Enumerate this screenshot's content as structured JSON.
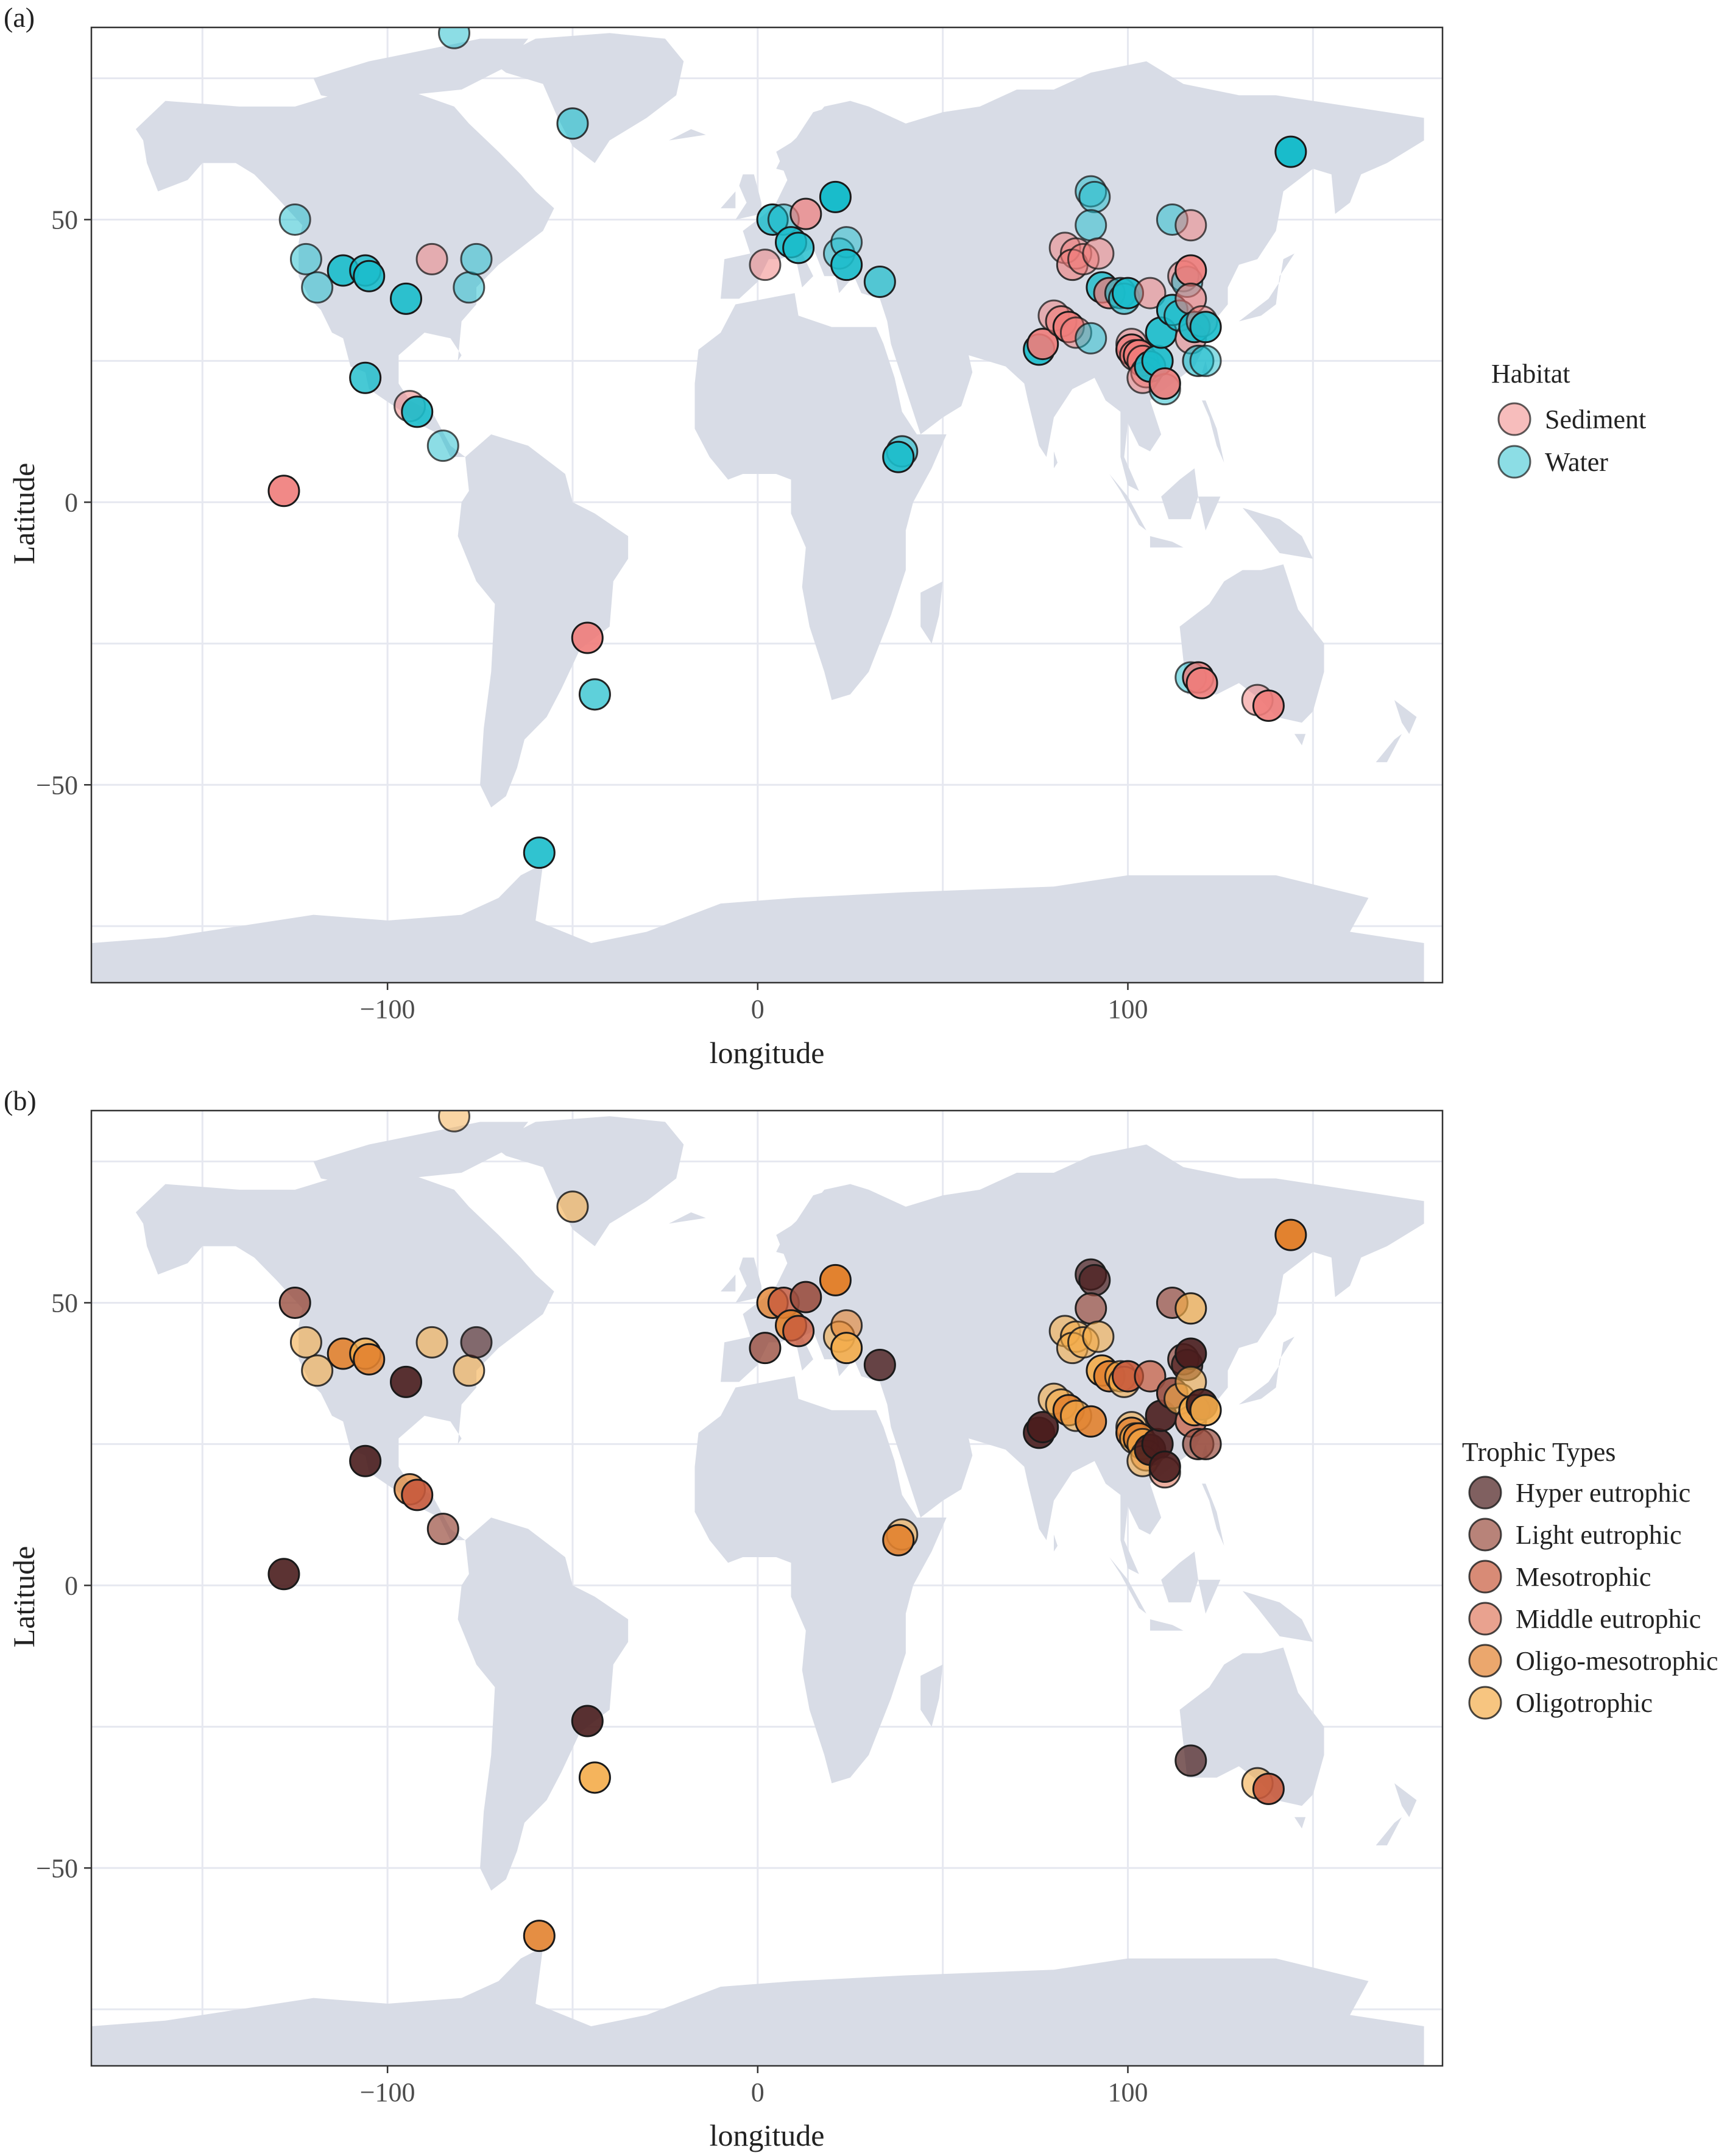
{
  "colors": {
    "sediment": "#f07c7a",
    "water": "#19bccb",
    "Hyper eutrophic": "#4a1d1d",
    "Light eutrophic": "#9a4f40",
    "Mesotrophic": "#c85a3c",
    "Middle eutrophic": "#e07a60",
    "Oligo-mesotrophic": "#e2822f",
    "Oligotrophic": "#f4ac4a"
  },
  "panel_a": {
    "label": "(a)",
    "xlabel": "longitude",
    "ylabel": "Latitude",
    "legend_title": "Habitat",
    "legend": [
      {
        "name": "Sediment",
        "color_key": "sediment"
      },
      {
        "name": "Water",
        "color_key": "water"
      }
    ]
  },
  "panel_b": {
    "label": "(b)",
    "xlabel": "longitude",
    "ylabel": "Latitude",
    "legend_title": "Trophic Types",
    "legend": [
      {
        "name": "Hyper eutrophic"
      },
      {
        "name": "Light eutrophic"
      },
      {
        "name": "Mesotrophic"
      },
      {
        "name": "Middle eutrophic"
      },
      {
        "name": "Oligo-mesotrophic"
      },
      {
        "name": "Oligotrophic"
      }
    ]
  },
  "chart_data": [
    {
      "type": "scatter",
      "title": "(a)",
      "xlabel": "longitude",
      "ylabel": "Latitude",
      "xlim": [
        -180,
        185
      ],
      "ylim": [
        -85,
        84
      ],
      "xticks": [
        -100,
        0,
        100
      ],
      "xtick_labels": [
        "−100",
        "0",
        "100"
      ],
      "yticks": [
        50,
        0,
        -50
      ],
      "ytick_labels": [
        "50",
        "0",
        "−50"
      ],
      "legend_title": "Habitat",
      "points": [
        [
          -82,
          83,
          "water",
          0.5
        ],
        [
          -50,
          67,
          "water",
          0.6
        ],
        [
          -125,
          50,
          "water",
          0.5
        ],
        [
          -122,
          43,
          "water",
          0.5
        ],
        [
          -119,
          38,
          "water",
          0.5
        ],
        [
          -112,
          41,
          "water",
          0.9
        ],
        [
          -106,
          41,
          "water",
          0.8
        ],
        [
          -105,
          40,
          "water",
          0.9
        ],
        [
          -95,
          36,
          "water",
          0.9
        ],
        [
          -88,
          43,
          "sediment",
          0.5
        ],
        [
          -78,
          38,
          "water",
          0.5
        ],
        [
          -76,
          43,
          "water",
          0.5
        ],
        [
          -106,
          22,
          "water",
          0.8
        ],
        [
          -94,
          17,
          "sediment",
          0.5
        ],
        [
          -92,
          16,
          "water",
          0.9
        ],
        [
          -85,
          10,
          "water",
          0.5
        ],
        [
          -128,
          2,
          "sediment",
          0.9
        ],
        [
          -46,
          -24,
          "sediment",
          0.9
        ],
        [
          -44,
          -34,
          "water",
          0.7
        ],
        [
          -59,
          -62,
          "water",
          0.9
        ],
        [
          2,
          42,
          "sediment",
          0.5
        ],
        [
          4,
          50,
          "water",
          0.8
        ],
        [
          7,
          50,
          "water",
          0.5
        ],
        [
          9,
          46,
          "water",
          0.9
        ],
        [
          11,
          45,
          "water",
          0.8
        ],
        [
          13,
          51,
          "sediment",
          0.7
        ],
        [
          21,
          54,
          "water",
          1.0
        ],
        [
          22,
          44,
          "water",
          0.5
        ],
        [
          24,
          46,
          "water",
          0.5
        ],
        [
          24,
          42,
          "water",
          0.9
        ],
        [
          33,
          39,
          "water",
          0.7
        ],
        [
          39,
          9,
          "water",
          0.6
        ],
        [
          38,
          8,
          "water",
          0.9
        ],
        [
          76,
          27,
          "water",
          0.9
        ],
        [
          77,
          28,
          "sediment",
          0.9
        ],
        [
          80,
          33,
          "sediment",
          0.5
        ],
        [
          82,
          32,
          "sediment",
          0.6
        ],
        [
          83,
          45,
          "sediment",
          0.5
        ],
        [
          86,
          44,
          "sediment",
          0.5
        ],
        [
          85,
          42,
          "sediment",
          0.6
        ],
        [
          88,
          43,
          "sediment",
          0.5
        ],
        [
          84,
          31,
          "sediment",
          0.9
        ],
        [
          86,
          30,
          "sediment",
          0.5
        ],
        [
          90,
          29,
          "water",
          0.5
        ],
        [
          90,
          55,
          "water",
          0.5
        ],
        [
          91,
          54,
          "water",
          0.5
        ],
        [
          90,
          49,
          "water",
          0.5
        ],
        [
          92,
          44,
          "sediment",
          0.5
        ],
        [
          93,
          38,
          "water",
          0.8
        ],
        [
          95,
          37,
          "sediment",
          0.5
        ],
        [
          95,
          37,
          "sediment",
          0.5
        ],
        [
          98,
          37,
          "water",
          0.6
        ],
        [
          99,
          36,
          "water",
          0.6
        ],
        [
          100,
          37,
          "water",
          0.9
        ],
        [
          101,
          28,
          "sediment",
          0.5
        ],
        [
          101,
          27,
          "sediment",
          0.8
        ],
        [
          102,
          26,
          "sediment",
          0.6
        ],
        [
          103,
          26,
          "sediment",
          0.9
        ],
        [
          104,
          25,
          "sediment",
          0.6
        ],
        [
          105,
          23,
          "sediment",
          0.6
        ],
        [
          104,
          22,
          "sediment",
          0.5
        ],
        [
          106,
          37,
          "sediment",
          0.5
        ],
        [
          106,
          24,
          "water",
          0.9
        ],
        [
          108,
          25,
          "water",
          0.9
        ],
        [
          109,
          30,
          "water",
          0.9
        ],
        [
          110,
          20,
          "water",
          0.5
        ],
        [
          110,
          21,
          "sediment",
          0.9
        ],
        [
          112,
          34,
          "water",
          0.8
        ],
        [
          112,
          50,
          "water",
          0.5
        ],
        [
          114,
          33,
          "water",
          0.6
        ],
        [
          115,
          40,
          "sediment",
          0.5
        ],
        [
          116,
          39,
          "water",
          0.5
        ],
        [
          117,
          49,
          "sediment",
          0.5
        ],
        [
          117,
          41,
          "sediment",
          0.9
        ],
        [
          117,
          36,
          "sediment",
          0.6
        ],
        [
          117,
          29,
          "sediment",
          0.5
        ],
        [
          118,
          31,
          "water",
          0.9
        ],
        [
          119,
          25,
          "water",
          0.6
        ],
        [
          120,
          32,
          "sediment",
          0.5
        ],
        [
          121,
          25,
          "water",
          0.5
        ],
        [
          121,
          31,
          "water",
          0.9
        ],
        [
          144,
          62,
          "water",
          1.0
        ],
        [
          117,
          -31,
          "water",
          0.5
        ],
        [
          119,
          -31,
          "sediment",
          0.8
        ],
        [
          120,
          -32,
          "sediment",
          0.9
        ],
        [
          135,
          -35,
          "sediment",
          0.5
        ],
        [
          138,
          -36,
          "sediment",
          0.9
        ]
      ]
    },
    {
      "type": "scatter",
      "title": "(b)",
      "xlabel": "longitude",
      "ylabel": "Latitude",
      "xlim": [
        -180,
        185
      ],
      "ylim": [
        -85,
        84
      ],
      "xticks": [
        -100,
        0,
        100
      ],
      "xtick_labels": [
        "−100",
        "0",
        "100"
      ],
      "yticks": [
        50,
        0,
        -50
      ],
      "ytick_labels": [
        "50",
        "0",
        "−50"
      ],
      "legend_title": "Trophic Types",
      "points": [
        [
          -82,
          83,
          "Oligotrophic",
          0.5
        ],
        [
          -50,
          67,
          "Oligotrophic",
          0.6
        ],
        [
          -125,
          50,
          "Light eutrophic",
          0.8
        ],
        [
          -122,
          43,
          "Oligotrophic",
          0.6
        ],
        [
          -119,
          38,
          "Oligotrophic",
          0.6
        ],
        [
          -112,
          41,
          "Oligo-mesotrophic",
          0.9
        ],
        [
          -106,
          41,
          "Oligotrophic",
          0.8
        ],
        [
          -105,
          40,
          "Oligo-mesotrophic",
          0.9
        ],
        [
          -95,
          36,
          "Hyper eutrophic",
          0.9
        ],
        [
          -88,
          43,
          "Oligotrophic",
          0.6
        ],
        [
          -78,
          38,
          "Oligotrophic",
          0.6
        ],
        [
          -76,
          43,
          "Hyper eutrophic",
          0.6
        ],
        [
          -106,
          22,
          "Hyper eutrophic",
          0.9
        ],
        [
          -94,
          17,
          "Oligo-mesotrophic",
          0.7
        ],
        [
          -92,
          16,
          "Mesotrophic",
          0.9
        ],
        [
          -85,
          10,
          "Light eutrophic",
          0.7
        ],
        [
          -128,
          2,
          "Hyper eutrophic",
          0.9
        ],
        [
          -46,
          -24,
          "Hyper eutrophic",
          0.9
        ],
        [
          -44,
          -34,
          "Oligotrophic",
          0.9
        ],
        [
          -59,
          -62,
          "Oligo-mesotrophic",
          0.9
        ],
        [
          2,
          42,
          "Light eutrophic",
          0.8
        ],
        [
          4,
          50,
          "Oligo-mesotrophic",
          0.8
        ],
        [
          7,
          50,
          "Mesotrophic",
          0.8
        ],
        [
          9,
          46,
          "Oligo-mesotrophic",
          0.9
        ],
        [
          11,
          45,
          "Mesotrophic",
          0.8
        ],
        [
          13,
          51,
          "Light eutrophic",
          0.9
        ],
        [
          21,
          54,
          "Oligo-mesotrophic",
          1.0
        ],
        [
          22,
          44,
          "Oligotrophic",
          0.6
        ],
        [
          24,
          46,
          "Oligo-mesotrophic",
          0.6
        ],
        [
          24,
          42,
          "Oligotrophic",
          0.9
        ],
        [
          33,
          39,
          "Hyper eutrophic",
          0.8
        ],
        [
          39,
          9,
          "Oligotrophic",
          0.6
        ],
        [
          38,
          8,
          "Oligo-mesotrophic",
          0.9
        ],
        [
          76,
          27,
          "Hyper eutrophic",
          0.9
        ],
        [
          77,
          28,
          "Hyper eutrophic",
          0.9
        ],
        [
          80,
          33,
          "Oligotrophic",
          0.6
        ],
        [
          82,
          32,
          "Oligotrophic",
          0.6
        ],
        [
          83,
          45,
          "Oligotrophic",
          0.6
        ],
        [
          86,
          44,
          "Oligotrophic",
          0.6
        ],
        [
          85,
          42,
          "Oligotrophic",
          0.6
        ],
        [
          88,
          43,
          "Oligotrophic",
          0.6
        ],
        [
          84,
          31,
          "Oligo-mesotrophic",
          0.9
        ],
        [
          86,
          30,
          "Oligotrophic",
          0.6
        ],
        [
          90,
          29,
          "Oligo-mesotrophic",
          0.9
        ],
        [
          90,
          55,
          "Hyper eutrophic",
          0.7
        ],
        [
          91,
          54,
          "Hyper eutrophic",
          0.7
        ],
        [
          90,
          49,
          "Light eutrophic",
          0.7
        ],
        [
          92,
          44,
          "Oligotrophic",
          0.6
        ],
        [
          93,
          38,
          "Oligotrophic",
          0.9
        ],
        [
          95,
          37,
          "Oligo-mesotrophic",
          0.9
        ],
        [
          98,
          37,
          "Oligotrophic",
          0.6
        ],
        [
          99,
          36,
          "Oligotrophic",
          0.6
        ],
        [
          100,
          37,
          "Mesotrophic",
          0.9
        ],
        [
          101,
          28,
          "Oligotrophic",
          0.6
        ],
        [
          101,
          27,
          "Oligo-mesotrophic",
          0.8
        ],
        [
          102,
          26,
          "Oligotrophic",
          0.6
        ],
        [
          103,
          26,
          "Oligo-mesotrophic",
          0.9
        ],
        [
          104,
          25,
          "Oligotrophic",
          0.6
        ],
        [
          105,
          23,
          "Oligo-mesotrophic",
          0.6
        ],
        [
          104,
          22,
          "Oligotrophic",
          0.6
        ],
        [
          106,
          37,
          "Mesotrophic",
          0.7
        ],
        [
          106,
          24,
          "Hyper eutrophic",
          0.9
        ],
        [
          108,
          25,
          "Hyper eutrophic",
          0.9
        ],
        [
          109,
          30,
          "Hyper eutrophic",
          0.9
        ],
        [
          110,
          20,
          "Middle eutrophic",
          0.6
        ],
        [
          110,
          21,
          "Hyper eutrophic",
          0.9
        ],
        [
          112,
          34,
          "Light eutrophic",
          0.9
        ],
        [
          112,
          50,
          "Light eutrophic",
          0.7
        ],
        [
          114,
          33,
          "Oligotrophic",
          0.6
        ],
        [
          115,
          40,
          "Light eutrophic",
          0.7
        ],
        [
          116,
          39,
          "Hyper eutrophic",
          0.7
        ],
        [
          117,
          49,
          "Oligotrophic",
          0.7
        ],
        [
          117,
          41,
          "Hyper eutrophic",
          0.9
        ],
        [
          117,
          36,
          "Oligotrophic",
          0.6
        ],
        [
          117,
          29,
          "Mesotrophic",
          0.7
        ],
        [
          118,
          31,
          "Oligotrophic",
          0.9
        ],
        [
          119,
          25,
          "Light eutrophic",
          0.7
        ],
        [
          120,
          32,
          "Hyper eutrophic",
          0.9
        ],
        [
          121,
          25,
          "Light eutrophic",
          0.7
        ],
        [
          121,
          31,
          "Oligotrophic",
          0.9
        ],
        [
          144,
          62,
          "Oligo-mesotrophic",
          1.0
        ],
        [
          117,
          -31,
          "Hyper eutrophic",
          0.7
        ],
        [
          135,
          -35,
          "Oligotrophic",
          0.6
        ],
        [
          138,
          -36,
          "Mesotrophic",
          0.9
        ]
      ]
    }
  ]
}
